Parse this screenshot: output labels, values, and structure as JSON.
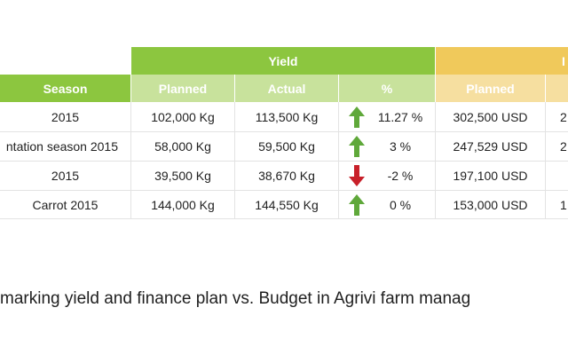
{
  "table": {
    "group_headers": {
      "yield": "Yield",
      "income": "I"
    },
    "columns": {
      "season": "Season",
      "planned": "Planned",
      "actual": "Actual",
      "pct": "%",
      "income_planned": "Planned"
    },
    "rows": [
      {
        "season": "2015",
        "planned": "102,000 Kg",
        "actual": "113,500 Kg",
        "trend": "up",
        "pct": "11.27 %",
        "income_planned": "302,500 USD",
        "income_actual": "2"
      },
      {
        "season": "ntation season 2015",
        "planned": "58,000 Kg",
        "actual": "59,500 Kg",
        "trend": "up",
        "pct": "3 %",
        "income_planned": "247,529 USD",
        "income_actual": "2"
      },
      {
        "season": "2015",
        "planned": "39,500 Kg",
        "actual": "38,670 Kg",
        "trend": "down",
        "pct": "-2 %",
        "income_planned": "197,100 USD",
        "income_actual": ""
      },
      {
        "season": "Carrot 2015",
        "planned": "144,000 Kg",
        "actual": "144,550 Kg",
        "trend": "up",
        "pct": "0 %",
        "income_planned": "153,000 USD",
        "income_actual": "1"
      }
    ],
    "colors": {
      "green": "#8cc63f",
      "light_green": "#c8e29c",
      "gold": "#f0c95b",
      "light_gold": "#f6dfa0",
      "up_arrow": "#5fa83a",
      "down_arrow": "#c8202a"
    }
  },
  "caption": "marking yield and finance plan vs. Budget in Agrivi farm manag"
}
